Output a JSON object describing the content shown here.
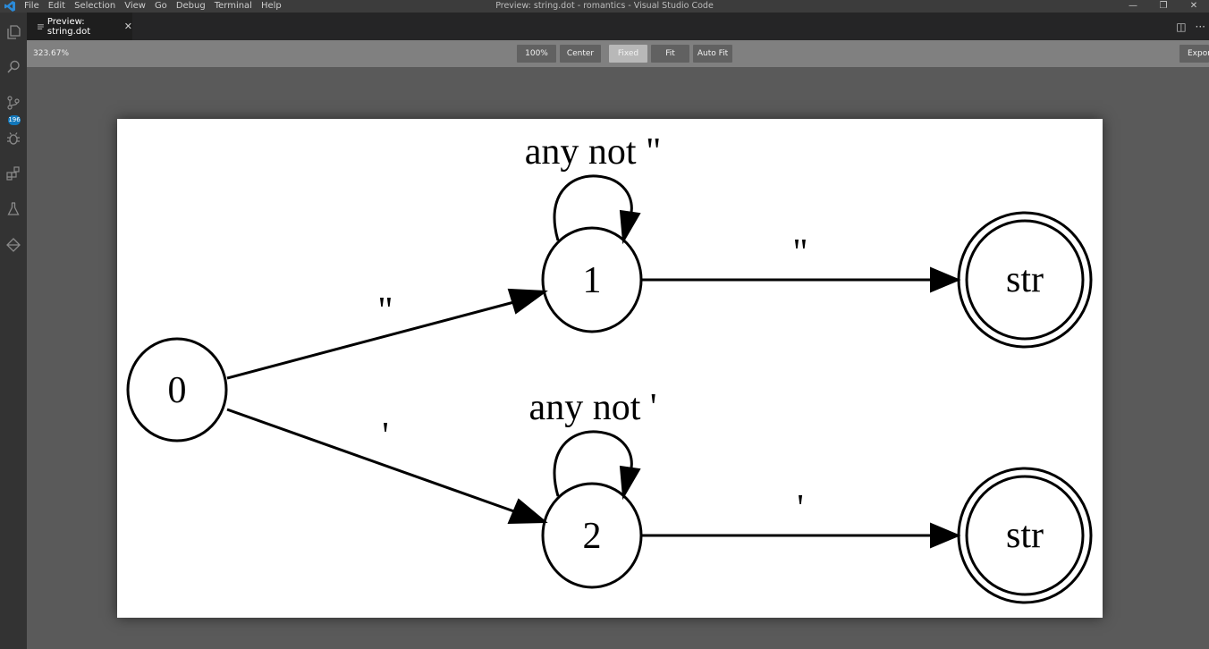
{
  "window": {
    "title": "Preview: string.dot - romantics - Visual Studio Code",
    "menu": [
      "File",
      "Edit",
      "Selection",
      "View",
      "Go",
      "Debug",
      "Terminal",
      "Help"
    ],
    "controls": [
      "—",
      "❐",
      "✕"
    ]
  },
  "activity_bar": {
    "items": [
      "explorer",
      "search",
      "source-control",
      "debug",
      "extensions",
      "test",
      "remote"
    ],
    "source_control_badge": "196"
  },
  "tabs": [
    {
      "label": "Preview: string.dot",
      "active": true
    }
  ],
  "tab_actions": [
    "◫",
    "···"
  ],
  "preview_toolbar": {
    "zoom_readout": "323.67%",
    "buttons": [
      {
        "label": "100%",
        "active": false
      },
      {
        "label": "Center",
        "active": false
      },
      {
        "label": "Fixed",
        "active": true
      },
      {
        "label": "Fit",
        "active": false
      },
      {
        "label": "Auto Fit",
        "active": false
      }
    ],
    "export_label": "Export"
  },
  "graph": {
    "nodes": [
      {
        "id": "n0",
        "label": "0",
        "accepting": false
      },
      {
        "id": "n1",
        "label": "1",
        "accepting": false
      },
      {
        "id": "n2",
        "label": "2",
        "accepting": false
      },
      {
        "id": "s1",
        "label": "str",
        "accepting": true
      },
      {
        "id": "s2",
        "label": "str",
        "accepting": true
      }
    ],
    "edges": [
      {
        "from": "n0",
        "to": "n1",
        "label": "\""
      },
      {
        "from": "n0",
        "to": "n2",
        "label": "'"
      },
      {
        "from": "n1",
        "to": "n1",
        "label": "any not \""
      },
      {
        "from": "n2",
        "to": "n2",
        "label": "any not '"
      },
      {
        "from": "n1",
        "to": "s1",
        "label": "\""
      },
      {
        "from": "n2",
        "to": "s2",
        "label": "'"
      }
    ]
  }
}
